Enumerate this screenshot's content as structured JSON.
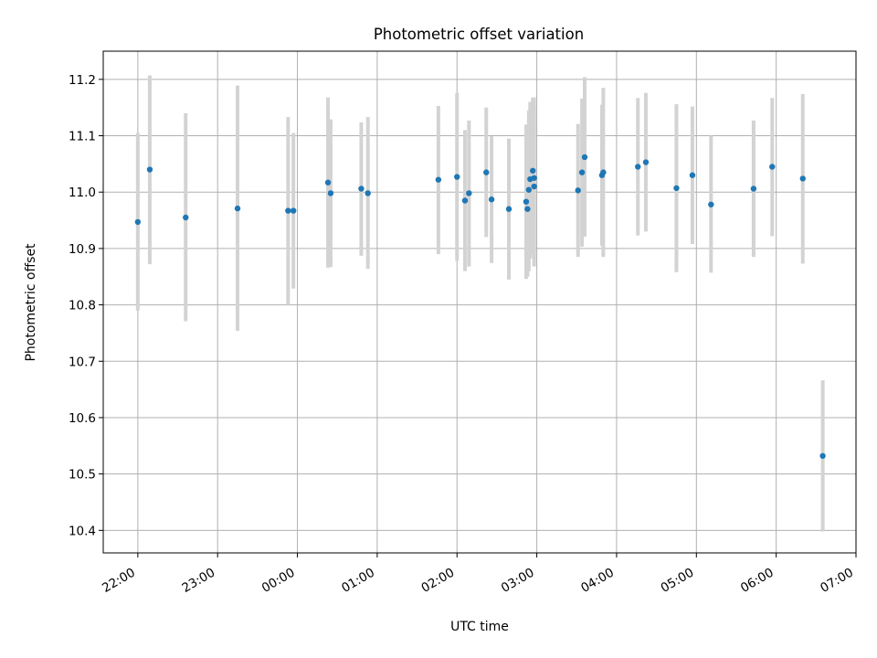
{
  "chart_data": {
    "type": "scatter",
    "title": "Photometric offset variation",
    "xlabel": "UTC time",
    "ylabel": "Photometric offset",
    "x_unit": "UTC",
    "xlim": [
      "21:34",
      "07:00"
    ],
    "ylim": [
      10.36,
      11.25
    ],
    "grid": true,
    "x_tick_labels": [
      "22:00",
      "23:00",
      "00:00",
      "01:00",
      "02:00",
      "03:00",
      "04:00",
      "05:00",
      "06:00",
      "07:00"
    ],
    "y_tick_labels": [
      "10.4",
      "10.5",
      "10.6",
      "10.7",
      "10.8",
      "10.9",
      "11.0",
      "11.1",
      "11.2"
    ],
    "colors": {
      "points": "#1f77b4",
      "errorbars": "#d3d3d3",
      "grid": "#b0b0b0"
    },
    "points": [
      {
        "x": "22:00",
        "y": 10.947,
        "low": 10.79,
        "high": 11.105
      },
      {
        "x": "22:09",
        "y": 11.04,
        "low": 10.872,
        "high": 11.207
      },
      {
        "x": "22:36",
        "y": 10.955,
        "low": 10.771,
        "high": 11.14
      },
      {
        "x": "23:15",
        "y": 10.971,
        "low": 10.754,
        "high": 11.189
      },
      {
        "x": "23:53",
        "y": 10.967,
        "low": 10.8,
        "high": 11.133
      },
      {
        "x": "23:57",
        "y": 10.967,
        "low": 10.829,
        "high": 11.105
      },
      {
        "x": "00:23",
        "y": 11.017,
        "low": 10.866,
        "high": 11.168
      },
      {
        "x": "00:25",
        "y": 10.998,
        "low": 10.867,
        "high": 11.129
      },
      {
        "x": "00:48",
        "y": 11.006,
        "low": 10.887,
        "high": 11.124
      },
      {
        "x": "00:53",
        "y": 10.998,
        "low": 10.864,
        "high": 11.133
      },
      {
        "x": "01:46",
        "y": 11.022,
        "low": 10.89,
        "high": 11.153
      },
      {
        "x": "02:00",
        "y": 11.027,
        "low": 10.878,
        "high": 11.176
      },
      {
        "x": "02:06",
        "y": 10.985,
        "low": 10.86,
        "high": 11.11
      },
      {
        "x": "02:09",
        "y": 10.998,
        "low": 10.868,
        "high": 11.127
      },
      {
        "x": "02:22",
        "y": 11.035,
        "low": 10.92,
        "high": 11.15
      },
      {
        "x": "02:26",
        "y": 10.987,
        "low": 10.874,
        "high": 11.099
      },
      {
        "x": "02:39",
        "y": 10.97,
        "low": 10.845,
        "high": 11.095
      },
      {
        "x": "02:52",
        "y": 10.983,
        "low": 10.846,
        "high": 11.12
      },
      {
        "x": "02:53",
        "y": 10.97,
        "low": 10.85,
        "high": 11.09
      },
      {
        "x": "02:54",
        "y": 11.004,
        "low": 10.86,
        "high": 11.145
      },
      {
        "x": "02:55",
        "y": 11.023,
        "low": 10.882,
        "high": 11.16
      },
      {
        "x": "02:57",
        "y": 11.038,
        "low": 10.89,
        "high": 11.168
      },
      {
        "x": "02:58",
        "y": 11.01,
        "low": 10.868,
        "high": 11.152
      },
      {
        "x": "02:58",
        "y": 11.025,
        "low": 10.88,
        "high": 11.168
      },
      {
        "x": "03:31",
        "y": 11.003,
        "low": 10.885,
        "high": 11.121
      },
      {
        "x": "03:34",
        "y": 11.035,
        "low": 10.903,
        "high": 11.166
      },
      {
        "x": "03:36",
        "y": 11.062,
        "low": 10.921,
        "high": 11.204
      },
      {
        "x": "03:49",
        "y": 11.03,
        "low": 10.905,
        "high": 11.155
      },
      {
        "x": "03:50",
        "y": 11.035,
        "low": 10.885,
        "high": 11.185
      },
      {
        "x": "04:16",
        "y": 11.045,
        "low": 10.923,
        "high": 11.167
      },
      {
        "x": "04:22",
        "y": 11.053,
        "low": 10.93,
        "high": 11.176
      },
      {
        "x": "04:45",
        "y": 11.007,
        "low": 10.858,
        "high": 11.156
      },
      {
        "x": "04:57",
        "y": 11.03,
        "low": 10.908,
        "high": 11.152
      },
      {
        "x": "05:11",
        "y": 10.978,
        "low": 10.857,
        "high": 11.1
      },
      {
        "x": "05:43",
        "y": 11.006,
        "low": 10.885,
        "high": 11.127
      },
      {
        "x": "05:57",
        "y": 11.045,
        "low": 10.922,
        "high": 11.167
      },
      {
        "x": "06:20",
        "y": 11.024,
        "low": 10.873,
        "high": 11.174
      },
      {
        "x": "06:35",
        "y": 10.532,
        "low": 10.398,
        "high": 10.666
      }
    ]
  }
}
